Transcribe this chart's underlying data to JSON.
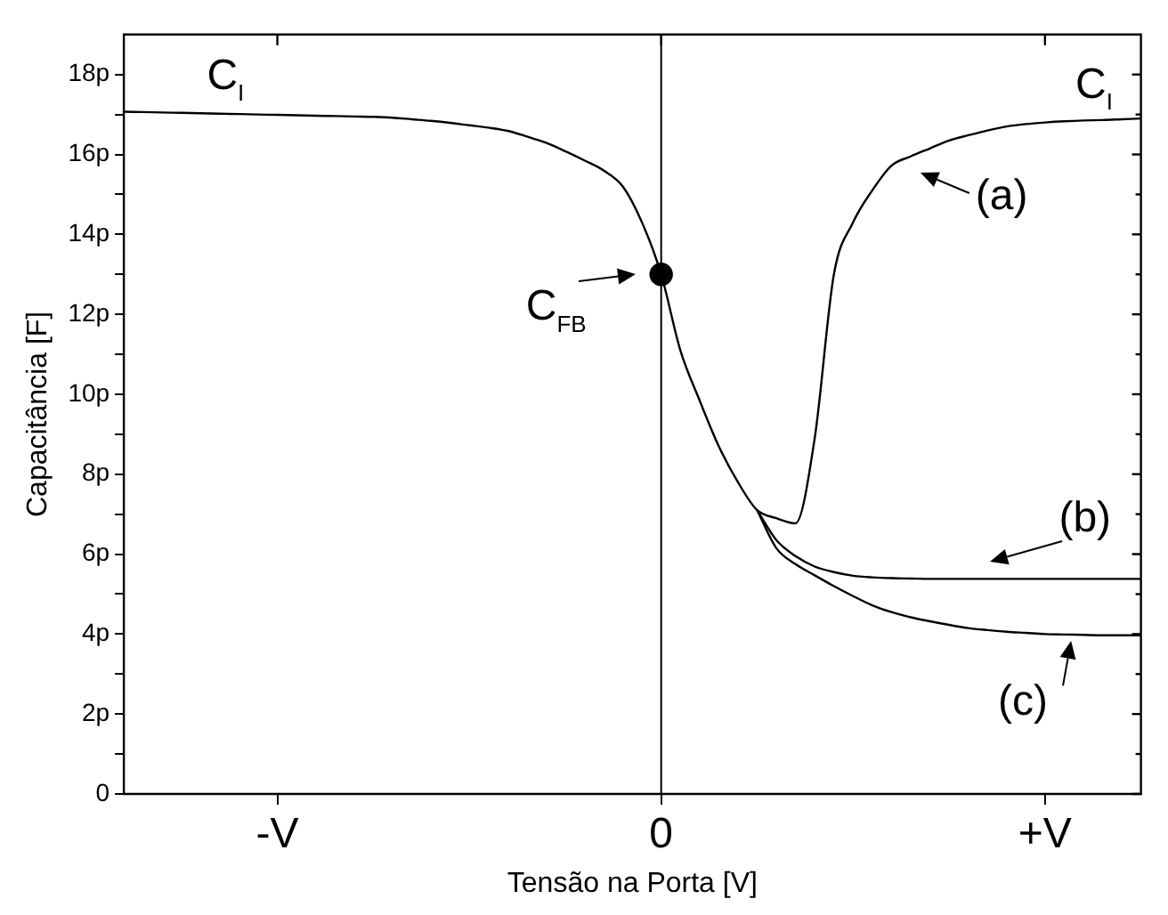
{
  "chart_data": {
    "type": "line",
    "xlabel": "Tensão na Porta [V]",
    "ylabel": "Capacitância [F]",
    "categories": [
      null,
      null,
      null,
      null,
      null,
      null,
      null,
      null,
      "-V",
      null,
      null,
      null,
      null,
      null,
      null,
      null,
      null,
      null,
      null,
      null,
      null,
      null,
      null,
      null,
      null,
      null,
      null,
      null,
      "0",
      null,
      null,
      null,
      null,
      null,
      null,
      null,
      null,
      null,
      null,
      null,
      null,
      null,
      null,
      null,
      null,
      null,
      null,
      null,
      "+V",
      null,
      null,
      null,
      null,
      null
    ],
    "ylim": [
      0,
      19
    ],
    "yticks": [
      0,
      {
        "value": 1,
        "label": null
      },
      {
        "value": 2,
        "label": "2p"
      },
      {
        "value": 3,
        "label": null
      },
      {
        "value": 4,
        "label": "4p"
      },
      {
        "value": 5,
        "label": null
      },
      {
        "value": 6,
        "label": "6p"
      },
      {
        "value": 7,
        "label": null
      },
      {
        "value": 8,
        "label": "8p"
      },
      {
        "value": 9,
        "label": null
      },
      {
        "value": 10,
        "label": "10p"
      },
      {
        "value": 11,
        "label": null
      },
      {
        "value": 12,
        "label": "12p"
      },
      {
        "value": 13,
        "label": null
      },
      {
        "value": 14,
        "label": "14p"
      },
      {
        "value": 15,
        "label": null
      },
      {
        "value": 16,
        "label": "16p"
      },
      {
        "value": 17,
        "label": null
      },
      {
        "value": 18,
        "label": "18p"
      }
    ],
    "series": [
      {
        "color": "#000000",
        "marker": "none",
        "values": [
          17.07,
          17.06,
          17.05,
          17.04,
          17.03,
          17.02,
          17.01,
          17.0,
          16.99,
          16.98,
          16.97,
          16.96,
          16.95,
          16.94,
          16.92,
          16.88,
          16.84,
          16.79,
          16.73,
          16.67,
          16.59,
          16.45,
          16.29,
          16.08,
          15.85,
          15.6,
          15.2,
          14.3,
          13.0,
          11.1,
          9.85,
          8.7,
          7.8,
          7.1,
          6.9,
          6.77,
          8.9,
          13.0,
          14.3,
          15.1,
          15.72,
          15.95,
          16.15,
          16.35,
          16.48,
          16.6,
          16.7,
          16.76,
          16.8,
          16.83,
          16.85,
          16.86,
          16.88,
          16.9
        ]
      },
      {
        "color": "#000000",
        "marker": "none",
        "values": [
          null,
          null,
          null,
          null,
          null,
          null,
          null,
          null,
          null,
          null,
          null,
          null,
          null,
          null,
          null,
          null,
          null,
          null,
          null,
          null,
          null,
          null,
          null,
          null,
          null,
          null,
          null,
          null,
          null,
          null,
          null,
          null,
          null,
          7.1,
          6.35,
          5.95,
          5.69,
          5.55,
          5.46,
          5.42,
          5.4,
          5.39,
          5.38,
          5.38,
          5.38,
          5.38,
          5.38,
          5.38,
          5.38,
          5.38,
          5.38,
          5.38,
          5.38,
          5.38
        ]
      },
      {
        "color": "#000000",
        "marker": "none",
        "values": [
          null,
          null,
          null,
          null,
          null,
          null,
          null,
          null,
          null,
          null,
          null,
          null,
          null,
          null,
          null,
          null,
          null,
          null,
          null,
          null,
          null,
          null,
          null,
          null,
          null,
          null,
          null,
          null,
          null,
          null,
          null,
          null,
          null,
          7.1,
          6.15,
          5.75,
          5.47,
          5.2,
          4.95,
          4.72,
          4.55,
          4.42,
          4.32,
          4.23,
          4.15,
          4.1,
          4.06,
          4.03,
          4.0,
          3.99,
          3.98,
          3.97,
          3.97,
          3.97
        ]
      },
      {
        "type": "scatter",
        "color": "#000000",
        "marker": "circle",
        "x": [
          "0"
        ],
        "values": [
          13
        ]
      }
    ],
    "ref_lines": [
      {
        "axis": "x",
        "value": "0",
        "color": "#000000"
      }
    ],
    "annotations": [
      "C$_{I}$",
      "C$_{I}$",
      "(a)",
      "(b)",
      "(c)",
      {
        "text": "C$_{FB}$",
        "x": "0",
        "y": 13
      }
    ]
  }
}
